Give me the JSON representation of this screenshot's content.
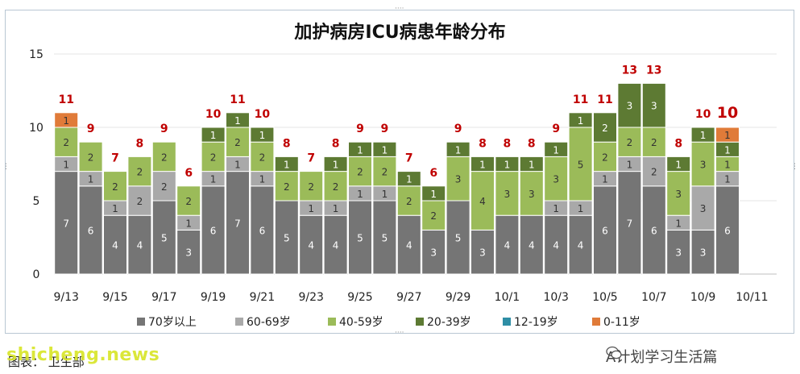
{
  "chart_data": {
    "type": "stacked-bar",
    "title": "加护病房ICU病患年龄分布",
    "ylim": [
      0,
      15
    ],
    "yticks": [
      0,
      5,
      10,
      15
    ],
    "xtick_labels": [
      "9/13",
      "9/15",
      "9/17",
      "9/19",
      "9/21",
      "9/23",
      "9/25",
      "9/27",
      "9/29",
      "10/1",
      "10/3",
      "10/5",
      "10/7",
      "10/9",
      "10/11"
    ],
    "categories": [
      "9/13",
      "9/14",
      "9/15",
      "9/16",
      "9/17",
      "9/18",
      "9/19",
      "9/20",
      "9/21",
      "9/22",
      "9/23",
      "9/24",
      "9/25",
      "9/26",
      "9/27",
      "9/28",
      "9/29",
      "9/30",
      "10/1",
      "10/2",
      "10/3",
      "10/4",
      "10/5",
      "10/6",
      "10/7",
      "10/8",
      "10/9",
      "10/10",
      "10/11"
    ],
    "totals": [
      11,
      9,
      7,
      8,
      9,
      6,
      10,
      11,
      10,
      8,
      7,
      8,
      9,
      9,
      7,
      6,
      9,
      8,
      8,
      8,
      9,
      11,
      11,
      13,
      13,
      8,
      10,
      10,
      null
    ],
    "series": [
      {
        "name": "70岁以上",
        "color": "#757575",
        "values": [
          7,
          6,
          4,
          4,
          5,
          3,
          6,
          7,
          6,
          5,
          4,
          4,
          5,
          5,
          4,
          3,
          5,
          3,
          4,
          4,
          4,
          4,
          6,
          7,
          6,
          3,
          3,
          6,
          0
        ]
      },
      {
        "name": "60-69岁",
        "color": "#a9a9a9",
        "values": [
          1,
          1,
          1,
          2,
          2,
          1,
          1,
          1,
          1,
          0,
          1,
          1,
          1,
          1,
          0,
          0,
          0,
          0,
          0,
          0,
          1,
          1,
          1,
          1,
          2,
          1,
          3,
          1,
          0
        ]
      },
      {
        "name": "40-59岁",
        "color": "#9bbb59",
        "values": [
          2,
          2,
          2,
          2,
          2,
          2,
          2,
          2,
          2,
          2,
          2,
          2,
          2,
          2,
          2,
          2,
          3,
          4,
          3,
          3,
          3,
          5,
          2,
          2,
          2,
          3,
          3,
          1,
          0
        ]
      },
      {
        "name": "20-39岁",
        "color": "#5d7a33",
        "values": [
          0,
          0,
          0,
          0,
          0,
          0,
          1,
          1,
          1,
          1,
          0,
          1,
          1,
          1,
          1,
          1,
          1,
          1,
          1,
          1,
          1,
          1,
          2,
          3,
          3,
          1,
          1,
          1,
          0
        ]
      },
      {
        "name": "12-19岁",
        "color": "#2e8ea5",
        "values": [
          0,
          0,
          0,
          0,
          0,
          0,
          0,
          0,
          0,
          0,
          0,
          0,
          0,
          0,
          0,
          0,
          0,
          0,
          0,
          0,
          0,
          0,
          0,
          0,
          0,
          0,
          0,
          0,
          0
        ]
      },
      {
        "name": "0-11岁",
        "color": "#e07b39",
        "values": [
          1,
          0,
          0,
          0,
          0,
          0,
          0,
          0,
          0,
          0,
          0,
          0,
          0,
          0,
          0,
          0,
          0,
          0,
          0,
          0,
          0,
          0,
          0,
          0,
          0,
          0,
          0,
          1,
          0
        ]
      }
    ],
    "grid": true,
    "legend_position": "bottom"
  },
  "footer": {
    "source_label": "图表： 卫生部",
    "watermark": "shicheng.news",
    "wechat_label": "A计划学习生活篇"
  }
}
